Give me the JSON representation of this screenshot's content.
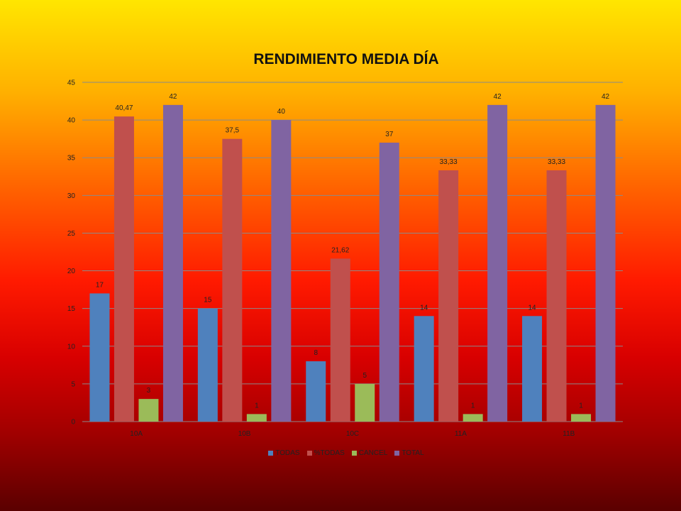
{
  "chart_data": {
    "type": "bar",
    "title": "RENDIMIENTO MEDIA DÍA",
    "categories": [
      "10A",
      "10B",
      "10C",
      "11A",
      "11B"
    ],
    "ylim": [
      0,
      45
    ],
    "yticks": [
      0,
      5,
      10,
      15,
      20,
      25,
      30,
      35,
      40,
      45
    ],
    "grid": true,
    "legend_position": "bottom",
    "series": [
      {
        "name": "TODAS",
        "color": "#4f81bd",
        "values": [
          17,
          15,
          8,
          14,
          14
        ],
        "labels": [
          "17",
          "15",
          "8",
          "14",
          "14"
        ]
      },
      {
        "name": "%TODAS",
        "color": "#c0504d",
        "values": [
          40.47,
          37.5,
          21.62,
          33.33,
          33.33
        ],
        "labels": [
          "40,47",
          "37,5",
          "21,62",
          "33,33",
          "33,33"
        ]
      },
      {
        "name": "CANCEL",
        "color": "#9bbb59",
        "values": [
          3,
          1,
          5,
          1,
          1
        ],
        "labels": [
          "3",
          "1",
          "5",
          "1",
          "1"
        ]
      },
      {
        "name": "TOTAL",
        "color": "#8064a2",
        "values": [
          42,
          40,
          37,
          42,
          42
        ],
        "labels": [
          "42",
          "40",
          "37",
          "42",
          "42"
        ]
      }
    ]
  }
}
